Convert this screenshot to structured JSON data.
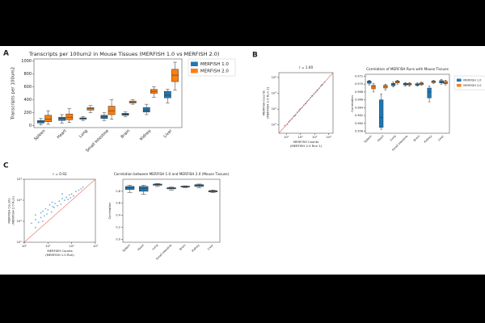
{
  "chart_data": [
    {
      "type": "box",
      "panel": "A",
      "title": "Transcripts per 100um2 in Mouse Tissues (MERFISH 1.0 vs MERFISH 2.0)",
      "ylabel": [
        "Transcripts per 100um2"
      ],
      "categories": [
        "Spleen",
        "Heart",
        "Lung",
        "Small Intestine",
        "Brain",
        "Kidney",
        "Liver"
      ],
      "ylim": [
        -30,
        1030
      ],
      "yticks": [
        0,
        200,
        400,
        600,
        800,
        1000
      ],
      "legend": "right",
      "series": [
        {
          "name": "MERFISH 1.0",
          "color": "#1f77b4",
          "values": [
            [
              10,
              40,
              60,
              80,
              110
            ],
            [
              40,
              80,
              110,
              130,
              170
            ],
            [
              80,
              100,
              110,
              120,
              140
            ],
            [
              80,
              110,
              140,
              160,
              200
            ],
            [
              140,
              160,
              175,
              190,
              210
            ],
            [
              170,
              210,
              240,
              280,
              330
            ],
            [
              350,
              430,
              470,
              530,
              560
            ]
          ]
        },
        {
          "name": "MERFISH 2.0",
          "color": "#ff7f0e",
          "values": [
            [
              20,
              60,
              100,
              160,
              230
            ],
            [
              50,
              90,
              130,
              180,
              260
            ],
            [
              200,
              240,
              260,
              280,
              310
            ],
            [
              100,
              170,
              230,
              300,
              400
            ],
            [
              330,
              350,
              365,
              380,
              400
            ],
            [
              440,
              500,
              530,
              560,
              600
            ],
            [
              550,
              680,
              780,
              870,
              980
            ]
          ]
        }
      ]
    },
    {
      "type": "scatter",
      "panel": "B",
      "title": "r = 1.00",
      "xlabel": [
        "MERFISH Counts",
        "(MERFISH 2.0 Run 1)"
      ],
      "ylabel": [
        "MERFISH Counts",
        "(MERFISH 2.0 Run 2)"
      ],
      "log": true,
      "color": "#1f77b4",
      "xlim": [
        3,
        20000
      ],
      "ylim": [
        3,
        20000
      ],
      "xticks": [
        {
          "value": 10,
          "label": "10¹"
        },
        {
          "value": 100,
          "label": "10²"
        },
        {
          "value": 1000,
          "label": "10³"
        },
        {
          "value": 10000,
          "label": "10⁴"
        }
      ],
      "yticks": [
        {
          "value": 10,
          "label": "10¹"
        },
        {
          "value": 100,
          "label": "10²"
        },
        {
          "value": 1000,
          "label": "10³"
        },
        {
          "value": 10000,
          "label": "10⁴"
        }
      ],
      "x": [
        8,
        12,
        18,
        25,
        33,
        45,
        60,
        80,
        100,
        130,
        170,
        220,
        300,
        400,
        520,
        700,
        900,
        1200,
        1600,
        2100,
        2800,
        3700,
        5000,
        15,
        40,
        90,
        250,
        650,
        1500,
        3300
      ],
      "y": [
        9,
        11,
        19,
        24,
        35,
        43,
        62,
        78,
        104,
        126,
        175,
        215,
        310,
        390,
        530,
        690,
        930,
        1170,
        1650,
        2050,
        2900,
        3600,
        5100,
        16,
        38,
        94,
        240,
        670,
        1460,
        3400
      ]
    },
    {
      "type": "box",
      "title": "Correlation of MERFISH Runs with Mouse Tissues",
      "ylabel": [
        "Correlation"
      ],
      "categories": [
        "Spleen",
        "Heart",
        "Lung",
        "Small Intestine",
        "Brain",
        "Kidney",
        "Liver"
      ],
      "ylim": [
        0.9575,
        0.9725
      ],
      "yticks": [
        {
          "value": 0.958,
          "label": "0.958"
        },
        {
          "value": 0.96,
          "label": "0.960"
        },
        {
          "value": 0.962,
          "label": "0.962"
        },
        {
          "value": 0.964,
          "label": "0.964"
        },
        {
          "value": 0.966,
          "label": "0.966"
        },
        {
          "value": 0.968,
          "label": "0.968"
        },
        {
          "value": 0.97,
          "label": "0.970"
        },
        {
          "value": 0.972,
          "label": "0.972"
        }
      ],
      "legend": "right",
      "series": [
        {
          "name": "MERFISH 1.0",
          "color": "#1f77b4",
          "values": [
            [
              0.9698,
              0.9702,
              0.9705,
              0.9708,
              0.971
            ],
            [
              0.9585,
              0.959,
              0.9615,
              0.966,
              0.9675
            ],
            [
              0.9693,
              0.9696,
              0.97,
              0.9702,
              0.9705
            ],
            [
              0.9695,
              0.9698,
              0.97,
              0.9702,
              0.9704
            ],
            [
              0.9695,
              0.9697,
              0.9699,
              0.9701,
              0.9703
            ],
            [
              0.9655,
              0.9665,
              0.968,
              0.969,
              0.9695
            ],
            [
              0.97,
              0.9703,
              0.9706,
              0.9709,
              0.9712
            ]
          ]
        },
        {
          "name": "MERFISH 2.0",
          "color": "#ff7f0e",
          "values": [
            [
              0.968,
              0.9688,
              0.9693,
              0.9697,
              0.9702
            ],
            [
              0.9685,
              0.969,
              0.9694,
              0.9697,
              0.97
            ],
            [
              0.97,
              0.9703,
              0.9706,
              0.9708,
              0.971
            ],
            [
              0.9695,
              0.9698,
              0.97,
              0.9702,
              0.9704
            ],
            [
              0.9697,
              0.9699,
              0.9701,
              0.9703,
              0.9705
            ],
            [
              0.9702,
              0.9704,
              0.9706,
              0.9708,
              0.971
            ],
            [
              0.9698,
              0.9701,
              0.9704,
              0.9707,
              0.971
            ]
          ]
        }
      ]
    },
    {
      "type": "scatter",
      "panel": "C",
      "title": "r = 0.92",
      "xlabel": [
        "MERFISH Counts",
        "(MERFISH 1.0 Run)"
      ],
      "ylabel": [
        "MERFISH Counts",
        "(MERFISH 2.0 Run)"
      ],
      "log": true,
      "color": "#1f77b4",
      "xlim": [
        1,
        1000
      ],
      "ylim": [
        1,
        1000
      ],
      "xticks": [
        {
          "value": 1,
          "label": "10⁰"
        },
        {
          "value": 10,
          "label": "10¹"
        },
        {
          "value": 100,
          "label": "10²"
        },
        {
          "value": 1000,
          "label": "10³"
        }
      ],
      "yticks": [
        {
          "value": 1,
          "label": "10⁰"
        },
        {
          "value": 10,
          "label": "10¹"
        },
        {
          "value": 100,
          "label": "10²"
        },
        {
          "value": 1000,
          "label": "10³"
        }
      ],
      "x": [
        2,
        3,
        3,
        4,
        5,
        5,
        6,
        7,
        8,
        9,
        10,
        12,
        14,
        16,
        18,
        20,
        25,
        30,
        35,
        40,
        50,
        60,
        70,
        80,
        100,
        120,
        150,
        200,
        250,
        300,
        3,
        6,
        15,
        40,
        90
      ],
      "y": [
        8,
        12,
        20,
        9,
        25,
        15,
        30,
        18,
        40,
        22,
        35,
        60,
        28,
        50,
        45,
        70,
        55,
        90,
        65,
        120,
        100,
        140,
        110,
        180,
        200,
        160,
        260,
        300,
        350,
        420,
        5,
        10,
        80,
        200,
        130
      ]
    },
    {
      "type": "box",
      "title": "Correlation between MERFISH 1.0 and MERFISH 2.0 (Mouse Tissues)",
      "ylabel": [
        "Correlation"
      ],
      "categories": [
        "Spleen",
        "Heart",
        "Lung",
        "Small Intestine",
        "Brain",
        "Kidney",
        "Liver"
      ],
      "ylim": [
        -0.05,
        1.0
      ],
      "yticks": [
        {
          "value": 0,
          "label": "0.0"
        },
        {
          "value": 0.2,
          "label": "0.2"
        },
        {
          "value": 0.4,
          "label": "0.4"
        },
        {
          "value": 0.6,
          "label": "0.6"
        },
        {
          "value": 0.8,
          "label": "0.8"
        }
      ],
      "series": [
        {
          "color": "#1f77b4",
          "values": [
            [
              0.78,
              0.83,
              0.86,
              0.88,
              0.9
            ],
            [
              0.75,
              0.8,
              0.85,
              0.88,
              0.9
            ],
            [
              0.88,
              0.9,
              0.91,
              0.92,
              0.93
            ],
            [
              0.82,
              0.84,
              0.85,
              0.86,
              0.87
            ],
            [
              0.86,
              0.87,
              0.88,
              0.885,
              0.89
            ],
            [
              0.86,
              0.88,
              0.9,
              0.91,
              0.92
            ],
            [
              0.78,
              0.79,
              0.8,
              0.81,
              0.82
            ]
          ]
        }
      ]
    }
  ]
}
